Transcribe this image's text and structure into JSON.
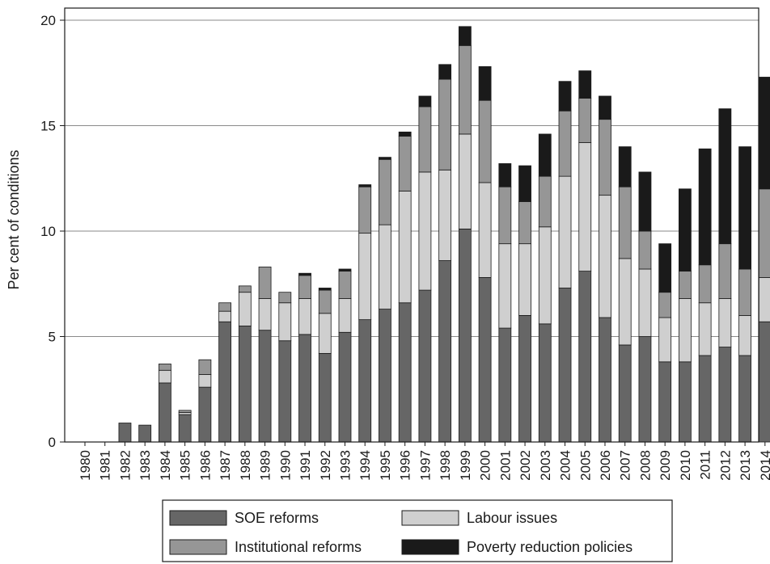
{
  "chart_data": {
    "type": "bar",
    "stacked": true,
    "title": "",
    "xlabel": "",
    "ylabel": "Per cent of conditions",
    "ylim": [
      0,
      20
    ],
    "yticks": [
      0,
      5,
      10,
      15,
      20
    ],
    "grid": "horizontal",
    "legend_position": "bottom",
    "categories": [
      "1980",
      "1981",
      "1982",
      "1983",
      "1984",
      "1985",
      "1986",
      "1987",
      "1988",
      "1989",
      "1990",
      "1991",
      "1992",
      "1993",
      "1994",
      "1995",
      "1996",
      "1997",
      "1998",
      "1999",
      "2000",
      "2001",
      "2002",
      "2003",
      "2004",
      "2005",
      "2006",
      "2007",
      "2008",
      "2009",
      "2010",
      "2011",
      "2012",
      "2013",
      "2014"
    ],
    "series": [
      {
        "name": "SOE reforms",
        "color": "#666666",
        "values": [
          0,
          0,
          0.9,
          0.8,
          2.8,
          1.3,
          2.6,
          5.7,
          5.5,
          5.3,
          4.8,
          5.1,
          4.2,
          5.2,
          5.8,
          6.3,
          6.6,
          7.2,
          8.6,
          10.1,
          7.8,
          5.4,
          6.0,
          5.6,
          7.3,
          8.1,
          5.9,
          4.6,
          5.0,
          3.8,
          3.8,
          4.1,
          4.5,
          4.1,
          5.7
        ]
      },
      {
        "name": "Labour issues",
        "color": "#cfcfcf",
        "values": [
          0,
          0,
          0,
          0,
          0.6,
          0.1,
          0.6,
          0.5,
          1.6,
          1.5,
          1.8,
          1.7,
          1.9,
          1.6,
          4.1,
          4.0,
          5.3,
          5.6,
          4.3,
          4.5,
          4.5,
          4.0,
          3.4,
          4.6,
          5.3,
          6.1,
          5.8,
          4.1,
          3.2,
          2.1,
          3.0,
          2.5,
          2.3,
          1.9,
          2.1
        ]
      },
      {
        "name": "Institutional reforms",
        "color": "#969696",
        "values": [
          0,
          0,
          0,
          0,
          0.3,
          0.1,
          0.7,
          0.4,
          0.3,
          1.5,
          0.5,
          1.1,
          1.1,
          1.3,
          2.2,
          3.1,
          2.6,
          3.1,
          4.3,
          4.2,
          3.9,
          2.7,
          2.0,
          2.4,
          3.1,
          2.1,
          3.6,
          3.4,
          1.8,
          1.2,
          1.3,
          1.8,
          2.6,
          2.2,
          4.2
        ]
      },
      {
        "name": "Poverty reduction policies",
        "color": "#1a1a1a",
        "values": [
          0,
          0,
          0,
          0,
          0,
          0,
          0,
          0,
          0,
          0,
          0,
          0.1,
          0.1,
          0.1,
          0.1,
          0.1,
          0.2,
          0.5,
          0.7,
          0.9,
          1.6,
          1.1,
          1.7,
          2.0,
          1.4,
          1.3,
          1.1,
          1.9,
          2.8,
          2.3,
          3.9,
          5.5,
          6.4,
          5.8,
          5.3
        ]
      }
    ]
  }
}
